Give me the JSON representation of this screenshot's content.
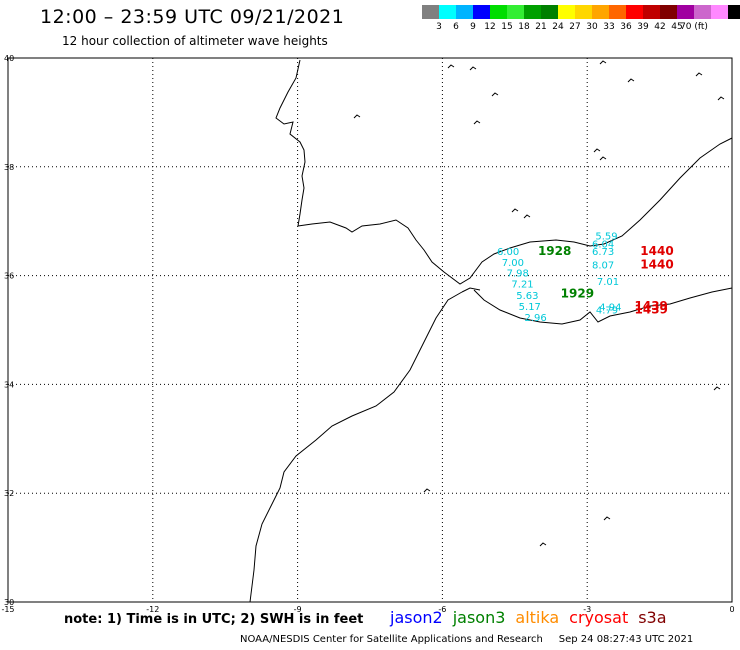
{
  "header": {
    "title": "12:00 – 23:59 UTC 09/21/2021",
    "subtitle": "12 hour collection of altimeter wave heights"
  },
  "scale": {
    "colors": [
      "#808080",
      "#00ffff",
      "#00b4ff",
      "#0000ff",
      "#00dd00",
      "#33ee33",
      "#00a000",
      "#008000",
      "#ffff00",
      "#ffd700",
      "#ffa500",
      "#ff6600",
      "#ff0000",
      "#c00000",
      "#800000",
      "#a000a0",
      "#cc66cc",
      "#ff88ff",
      "#000000"
    ],
    "labels": [
      "3",
      "6",
      "9",
      "12",
      "15",
      "18",
      "21",
      "24",
      "27",
      "30",
      "33",
      "36",
      "39",
      "42",
      "45",
      "70 (ft)"
    ],
    "unit": "(ft)"
  },
  "axes": {
    "y_ticks": [
      "40",
      "38",
      "36",
      "34",
      "32",
      "30"
    ],
    "x_ticks": [
      "-15",
      "-12",
      "-9",
      "-6",
      "-3",
      "0"
    ]
  },
  "observations": [
    {
      "text": "6.00",
      "color": "#00c8d8",
      "lon": -4.87,
      "lat": 36.38
    },
    {
      "text": "7.00",
      "color": "#00c8d8",
      "lon": -4.77,
      "lat": 36.18
    },
    {
      "text": "7.98",
      "color": "#00c8d8",
      "lon": -4.67,
      "lat": 35.98
    },
    {
      "text": "7.21",
      "color": "#00c8d8",
      "lon": -4.57,
      "lat": 35.78
    },
    {
      "text": "5.63",
      "color": "#00c8d8",
      "lon": -4.47,
      "lat": 35.57
    },
    {
      "text": "5.17",
      "color": "#00c8d8",
      "lon": -4.42,
      "lat": 35.37
    },
    {
      "text": "2.96",
      "color": "#00c8d8",
      "lon": -4.3,
      "lat": 35.17
    },
    {
      "text": "1928",
      "color": "#008000",
      "lon": -4.02,
      "lat": 36.38
    },
    {
      "text": "1929",
      "color": "#008000",
      "lon": -3.55,
      "lat": 35.6
    },
    {
      "text": "5.59",
      "color": "#00c8d8",
      "lon": -2.83,
      "lat": 36.66
    },
    {
      "text": "6.04",
      "color": "#00c8d8",
      "lon": -2.9,
      "lat": 36.52
    },
    {
      "text": "6.73",
      "color": "#00c8d8",
      "lon": -2.9,
      "lat": 36.38
    },
    {
      "text": "8.07",
      "color": "#00c8d8",
      "lon": -2.9,
      "lat": 36.13
    },
    {
      "text": "7.01",
      "color": "#00c8d8",
      "lon": -2.8,
      "lat": 35.83
    },
    {
      "text": "4.94",
      "color": "#00c8d8",
      "lon": -2.75,
      "lat": 35.36
    },
    {
      "text": "4.79",
      "color": "#00c8d8",
      "lon": -2.82,
      "lat": 35.3
    },
    {
      "text": "1440",
      "color": "#e00000",
      "lon": -1.9,
      "lat": 36.38
    },
    {
      "text": "1440",
      "color": "#e00000",
      "lon": -1.9,
      "lat": 36.13
    },
    {
      "text": "1439",
      "color": "#e00000",
      "lon": -2.02,
      "lat": 35.37
    },
    {
      "text": "1439",
      "color": "#e00000",
      "lon": -2.02,
      "lat": 35.3
    }
  ],
  "footer": {
    "note": "note: 1) Time is in UTC; 2) SWH is in feet",
    "satellites": [
      {
        "name": "jason2",
        "color": "#0000ff"
      },
      {
        "name": "jason3",
        "color": "#008000"
      },
      {
        "name": "altika",
        "color": "#ff8c00"
      },
      {
        "name": "cryosat",
        "color": "#ff0000"
      },
      {
        "name": "s3a",
        "color": "#800000"
      }
    ],
    "credit": "NOAA/NESDIS Center for Satellite Applications and Research",
    "timestamp": "Sep 24 08:27:43 UTC 2021"
  }
}
